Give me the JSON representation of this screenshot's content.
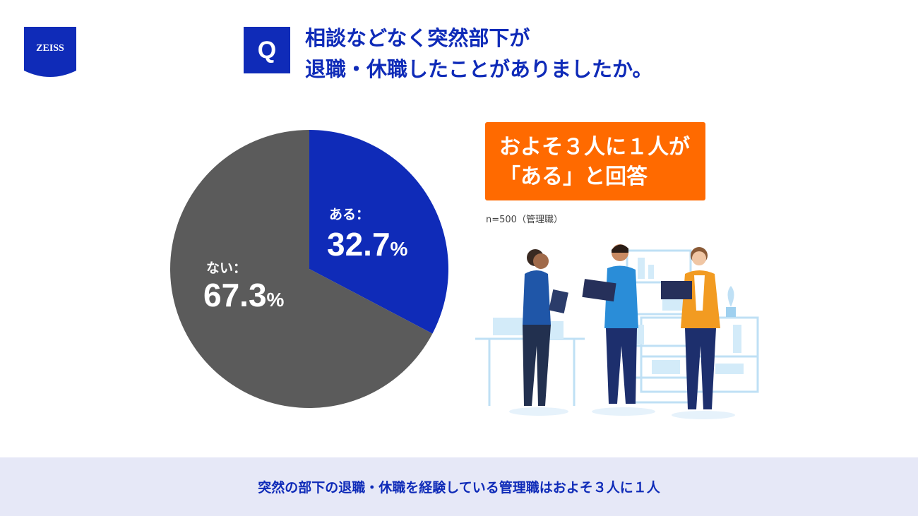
{
  "logo": {
    "text": "ZEISS",
    "color": "#0f2bb8"
  },
  "question": {
    "badge": "Q",
    "line1": "相談などなく突然部下が",
    "line2": "退職・休職したことがありましたか。"
  },
  "callout": {
    "line1": "およそ３人に１人が",
    "line2": "「ある」と回答",
    "color": "#ff6a00"
  },
  "note": "n=500（管理職）",
  "footer": {
    "text": "突然の部下の退職・休職を経験している管理職はおよそ３人に１人"
  },
  "illustration": {
    "icon": "business-people-discussion-illustration"
  },
  "chart_data": {
    "type": "pie",
    "start": "12 o'clock",
    "direction": "clockwise",
    "slices": [
      {
        "label": "ある：",
        "value": 32.7,
        "value_text": "32.7",
        "unit": "%",
        "color": "#0f2bb8"
      },
      {
        "label": "ない：",
        "value": 67.3,
        "value_text": "67.3",
        "unit": "%",
        "color": "#5b5b5b"
      }
    ]
  }
}
